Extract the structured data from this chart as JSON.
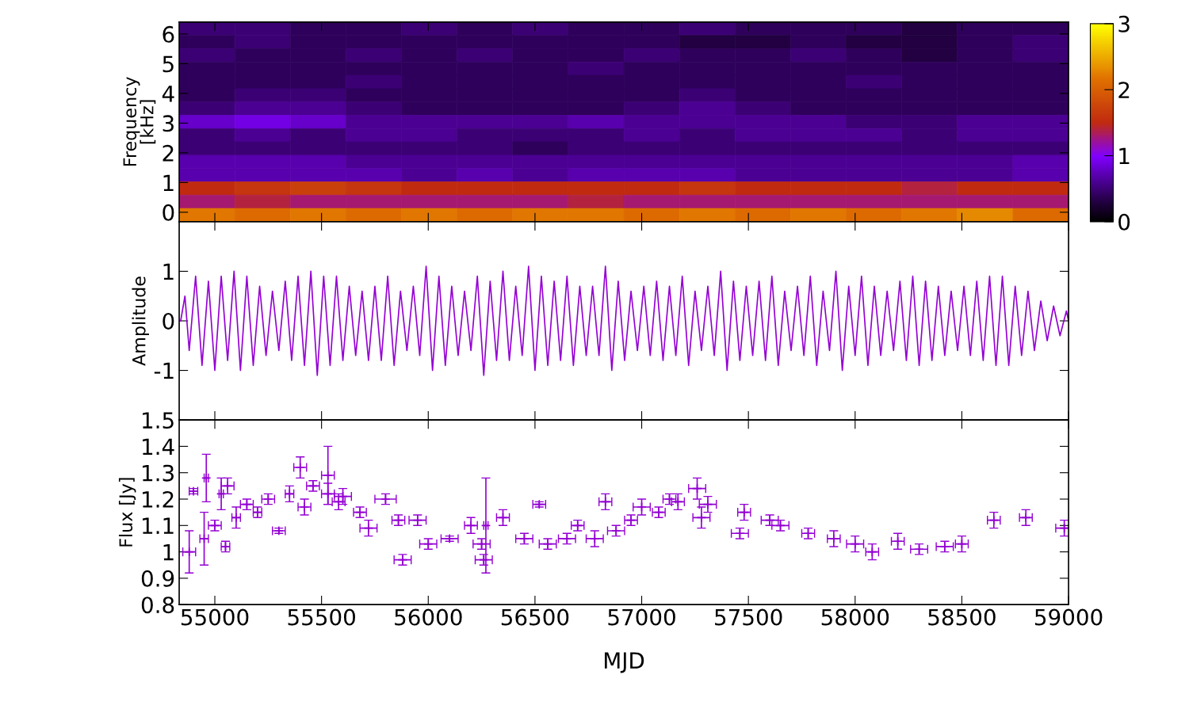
{
  "chart_data": [
    {
      "type": "heatmap",
      "ylabel": "Frequency\n[kHz]",
      "xlim": [
        54833,
        59000
      ],
      "ylim": [
        -0.32,
        6.4
      ],
      "yticks": [
        0,
        1,
        2,
        3,
        4,
        5,
        6
      ],
      "tick_labels": "y",
      "clim": [
        0,
        3
      ],
      "cticks": [
        0,
        1,
        2,
        3
      ],
      "cells": [
        [
          0.5,
          0.5,
          0.4,
          0.4,
          0.5,
          0.4,
          0.5,
          0.4,
          0.4,
          0.5,
          0.4,
          0.4,
          0.4,
          0.3,
          0.4,
          0.4
        ],
        [
          0.4,
          0.5,
          0.4,
          0.4,
          0.4,
          0.4,
          0.4,
          0.4,
          0.4,
          0.3,
          0.3,
          0.4,
          0.3,
          0.3,
          0.4,
          0.5
        ],
        [
          0.5,
          0.4,
          0.4,
          0.5,
          0.4,
          0.5,
          0.4,
          0.4,
          0.5,
          0.4,
          0.4,
          0.5,
          0.4,
          0.3,
          0.4,
          0.5
        ],
        [
          0.4,
          0.4,
          0.4,
          0.4,
          0.4,
          0.4,
          0.4,
          0.5,
          0.4,
          0.4,
          0.4,
          0.4,
          0.4,
          0.4,
          0.4,
          0.4
        ],
        [
          0.4,
          0.4,
          0.4,
          0.5,
          0.4,
          0.4,
          0.4,
          0.4,
          0.4,
          0.4,
          0.4,
          0.4,
          0.5,
          0.4,
          0.4,
          0.4
        ],
        [
          0.4,
          0.5,
          0.5,
          0.4,
          0.4,
          0.4,
          0.4,
          0.4,
          0.4,
          0.5,
          0.4,
          0.4,
          0.4,
          0.4,
          0.4,
          0.4
        ],
        [
          0.5,
          0.6,
          0.6,
          0.5,
          0.4,
          0.4,
          0.4,
          0.4,
          0.5,
          0.6,
          0.5,
          0.4,
          0.4,
          0.4,
          0.4,
          0.4
        ],
        [
          0.8,
          0.9,
          0.8,
          0.6,
          0.6,
          0.6,
          0.6,
          0.7,
          0.6,
          0.6,
          0.6,
          0.6,
          0.5,
          0.5,
          0.6,
          0.6
        ],
        [
          0.5,
          0.6,
          0.5,
          0.6,
          0.6,
          0.5,
          0.5,
          0.5,
          0.6,
          0.5,
          0.6,
          0.6,
          0.6,
          0.5,
          0.6,
          0.6
        ],
        [
          0.5,
          0.5,
          0.5,
          0.5,
          0.5,
          0.5,
          0.4,
          0.5,
          0.5,
          0.5,
          0.5,
          0.5,
          0.5,
          0.5,
          0.5,
          0.5
        ],
        [
          0.7,
          0.7,
          0.7,
          0.6,
          0.6,
          0.6,
          0.6,
          0.6,
          0.6,
          0.6,
          0.6,
          0.6,
          0.6,
          0.6,
          0.6,
          0.7
        ],
        [
          0.7,
          0.7,
          0.7,
          0.7,
          0.6,
          0.7,
          0.6,
          0.7,
          0.7,
          0.7,
          0.6,
          0.6,
          0.6,
          0.6,
          0.6,
          0.7
        ],
        [
          1.5,
          1.6,
          1.7,
          1.6,
          1.5,
          1.5,
          1.5,
          1.5,
          1.5,
          1.6,
          1.5,
          1.5,
          1.5,
          1.4,
          1.5,
          1.5
        ],
        [
          1.3,
          1.4,
          1.3,
          1.3,
          1.3,
          1.3,
          1.3,
          1.4,
          1.3,
          1.3,
          1.3,
          1.3,
          1.3,
          1.3,
          1.3,
          1.3
        ],
        [
          2.2,
          2.1,
          2.2,
          2.1,
          2.2,
          2.1,
          2.2,
          2.2,
          2.1,
          2.2,
          2.1,
          2.2,
          2.1,
          2.2,
          2.3,
          2.1
        ]
      ]
    },
    {
      "type": "line",
      "ylabel": "Amplitude",
      "xlim": [
        54833,
        59000
      ],
      "ylim": [
        -2,
        2
      ],
      "yticks": [
        -1,
        0,
        1
      ],
      "tick_labels": "y",
      "series": [
        {
          "color": "#9400d3",
          "x": [
            54840,
            54860,
            54880,
            54910,
            54940,
            54970,
            55000,
            55030,
            55060,
            55090,
            55120,
            55150,
            55180,
            55210,
            55240,
            55270,
            55300,
            55330,
            55360,
            55390,
            55420,
            55450,
            55480,
            55510,
            55540,
            55570,
            55600,
            55630,
            55660,
            55690,
            55720,
            55750,
            55780,
            55810,
            55840,
            55870,
            55900,
            55930,
            55960,
            55990,
            56020,
            56050,
            56080,
            56110,
            56140,
            56170,
            56200,
            56230,
            56260,
            56290,
            56320,
            56350,
            56380,
            56410,
            56440,
            56470,
            56500,
            56530,
            56560,
            56590,
            56620,
            56650,
            56680,
            56710,
            56740,
            56770,
            56800,
            56830,
            56860,
            56890,
            56920,
            56950,
            56980,
            57010,
            57040,
            57070,
            57100,
            57130,
            57160,
            57190,
            57220,
            57250,
            57280,
            57310,
            57340,
            57370,
            57400,
            57430,
            57460,
            57490,
            57520,
            57550,
            57580,
            57610,
            57640,
            57670,
            57700,
            57730,
            57760,
            57790,
            57820,
            57850,
            57880,
            57910,
            57940,
            57970,
            58000,
            58030,
            58060,
            58090,
            58120,
            58150,
            58180,
            58210,
            58240,
            58270,
            58300,
            58330,
            58360,
            58390,
            58420,
            58450,
            58480,
            58510,
            58540,
            58570,
            58600,
            58630,
            58660,
            58690,
            58720,
            58750,
            58780,
            58810,
            58840,
            58870,
            58900,
            58930,
            58960,
            58990,
            59000
          ],
          "values": [
            0,
            0.5,
            -0.6,
            0.9,
            -0.9,
            0.8,
            -1.0,
            0.9,
            -0.8,
            1.0,
            -1.0,
            0.9,
            -0.9,
            0.7,
            -0.7,
            0.6,
            -0.6,
            0.8,
            -0.8,
            0.9,
            -0.9,
            1.0,
            -1.1,
            0.9,
            -0.9,
            0.9,
            -0.8,
            0.7,
            -0.7,
            0.6,
            -0.8,
            0.7,
            -0.8,
            0.9,
            -0.9,
            0.6,
            -0.6,
            0.7,
            -0.7,
            1.1,
            -1.0,
            0.9,
            -0.9,
            0.7,
            -0.7,
            0.6,
            -0.6,
            0.9,
            -1.1,
            0.8,
            -0.8,
            1.0,
            -0.8,
            0.7,
            -0.7,
            1.1,
            -1.0,
            0.9,
            -0.9,
            0.8,
            -0.8,
            0.9,
            -0.9,
            0.7,
            -0.7,
            0.7,
            -0.7,
            1.1,
            -1.0,
            0.8,
            -0.8,
            0.6,
            -0.6,
            0.7,
            -0.7,
            0.8,
            -0.8,
            0.7,
            -0.7,
            0.9,
            -0.9,
            0.6,
            -0.6,
            0.7,
            -0.7,
            1.0,
            -1.0,
            0.8,
            -0.8,
            0.7,
            -0.7,
            0.8,
            -0.8,
            0.9,
            -0.9,
            0.6,
            -0.6,
            0.7,
            -0.7,
            0.9,
            -0.9,
            0.6,
            -0.6,
            1.0,
            -1.0,
            0.7,
            -0.7,
            0.9,
            -0.9,
            0.7,
            -0.7,
            0.6,
            -0.6,
            0.8,
            -0.8,
            0.9,
            -0.9,
            0.8,
            -0.8,
            0.7,
            -0.7,
            0.6,
            -0.6,
            0.7,
            -0.7,
            0.8,
            -0.8,
            0.9,
            -0.9,
            0.9,
            -0.9,
            0.7,
            -0.7,
            0.6,
            -0.6,
            0.4,
            -0.4,
            0.3,
            -0.3,
            0.2,
            0
          ]
        }
      ]
    },
    {
      "type": "scatter",
      "marker": "cross",
      "ylabel": "Flux [Jy]",
      "xlabel": "MJD",
      "xlim": [
        54833,
        59000
      ],
      "ylim": [
        0.8,
        1.5
      ],
      "xticks": [
        55000,
        55500,
        56000,
        56500,
        57000,
        57500,
        58000,
        58500,
        59000
      ],
      "yticks": [
        0.8,
        0.9,
        1,
        1.1,
        1.2,
        1.3,
        1.4,
        1.5
      ],
      "series": [
        {
          "color": "#9400d3",
          "x": [
            54880,
            54900,
            54950,
            54960,
            55000,
            55030,
            55050,
            55060,
            55100,
            55150,
            55200,
            55250,
            55300,
            55350,
            55400,
            55420,
            55460,
            55530,
            55530,
            55580,
            55600,
            55680,
            55720,
            55800,
            55860,
            55880,
            55950,
            56000,
            56100,
            56200,
            56250,
            56260,
            56270,
            56350,
            56450,
            56520,
            56560,
            56650,
            56700,
            56780,
            56830,
            56880,
            56950,
            57000,
            57080,
            57130,
            57170,
            57260,
            57280,
            57310,
            57460,
            57480,
            57600,
            57650,
            57780,
            57900,
            58000,
            58080,
            58200,
            58300,
            58420,
            58500,
            58650,
            58800,
            58980
          ],
          "values": [
            1.0,
            1.23,
            1.05,
            1.28,
            1.1,
            1.22,
            1.02,
            1.25,
            1.13,
            1.18,
            1.15,
            1.2,
            1.08,
            1.22,
            1.32,
            1.17,
            1.25,
            1.29,
            1.22,
            1.19,
            1.21,
            1.15,
            1.09,
            1.2,
            1.12,
            0.97,
            1.12,
            1.03,
            1.05,
            1.1,
            1.03,
            0.97,
            1.1,
            1.13,
            1.05,
            1.18,
            1.03,
            1.05,
            1.1,
            1.05,
            1.19,
            1.08,
            1.12,
            1.17,
            1.15,
            1.2,
            1.19,
            1.24,
            1.13,
            1.18,
            1.07,
            1.15,
            1.12,
            1.1,
            1.07,
            1.05,
            1.03,
            1.0,
            1.04,
            1.01,
            1.02,
            1.03,
            1.12,
            1.13,
            1.09
          ],
          "errors": [
            0.08,
            0.01,
            0.1,
            0.09,
            0.02,
            0.06,
            0.02,
            0.03,
            0.04,
            0.02,
            0.02,
            0.02,
            0.01,
            0.03,
            0.04,
            0.03,
            0.02,
            0.11,
            0.04,
            0.03,
            0.03,
            0.02,
            0.03,
            0.02,
            0.02,
            0.02,
            0.02,
            0.02,
            0.01,
            0.03,
            0.02,
            0.02,
            0.18,
            0.03,
            0.02,
            0.01,
            0.02,
            0.02,
            0.02,
            0.03,
            0.03,
            0.02,
            0.02,
            0.03,
            0.02,
            0.02,
            0.03,
            0.04,
            0.04,
            0.03,
            0.02,
            0.03,
            0.02,
            0.02,
            0.02,
            0.03,
            0.03,
            0.03,
            0.03,
            0.02,
            0.02,
            0.03,
            0.03,
            0.03,
            0.03
          ],
          "xerrors": [
            30,
            20,
            20,
            10,
            30,
            10,
            20,
            30,
            20,
            30,
            20,
            30,
            30,
            20,
            30,
            30,
            30,
            30,
            30,
            30,
            40,
            30,
            40,
            50,
            30,
            40,
            40,
            40,
            40,
            30,
            40,
            40,
            10,
            30,
            40,
            30,
            40,
            40,
            30,
            40,
            30,
            40,
            30,
            40,
            30,
            30,
            30,
            40,
            40,
            40,
            40,
            30,
            40,
            40,
            30,
            30,
            40,
            30,
            30,
            40,
            40,
            30,
            30,
            30,
            40
          ]
        }
      ]
    }
  ]
}
